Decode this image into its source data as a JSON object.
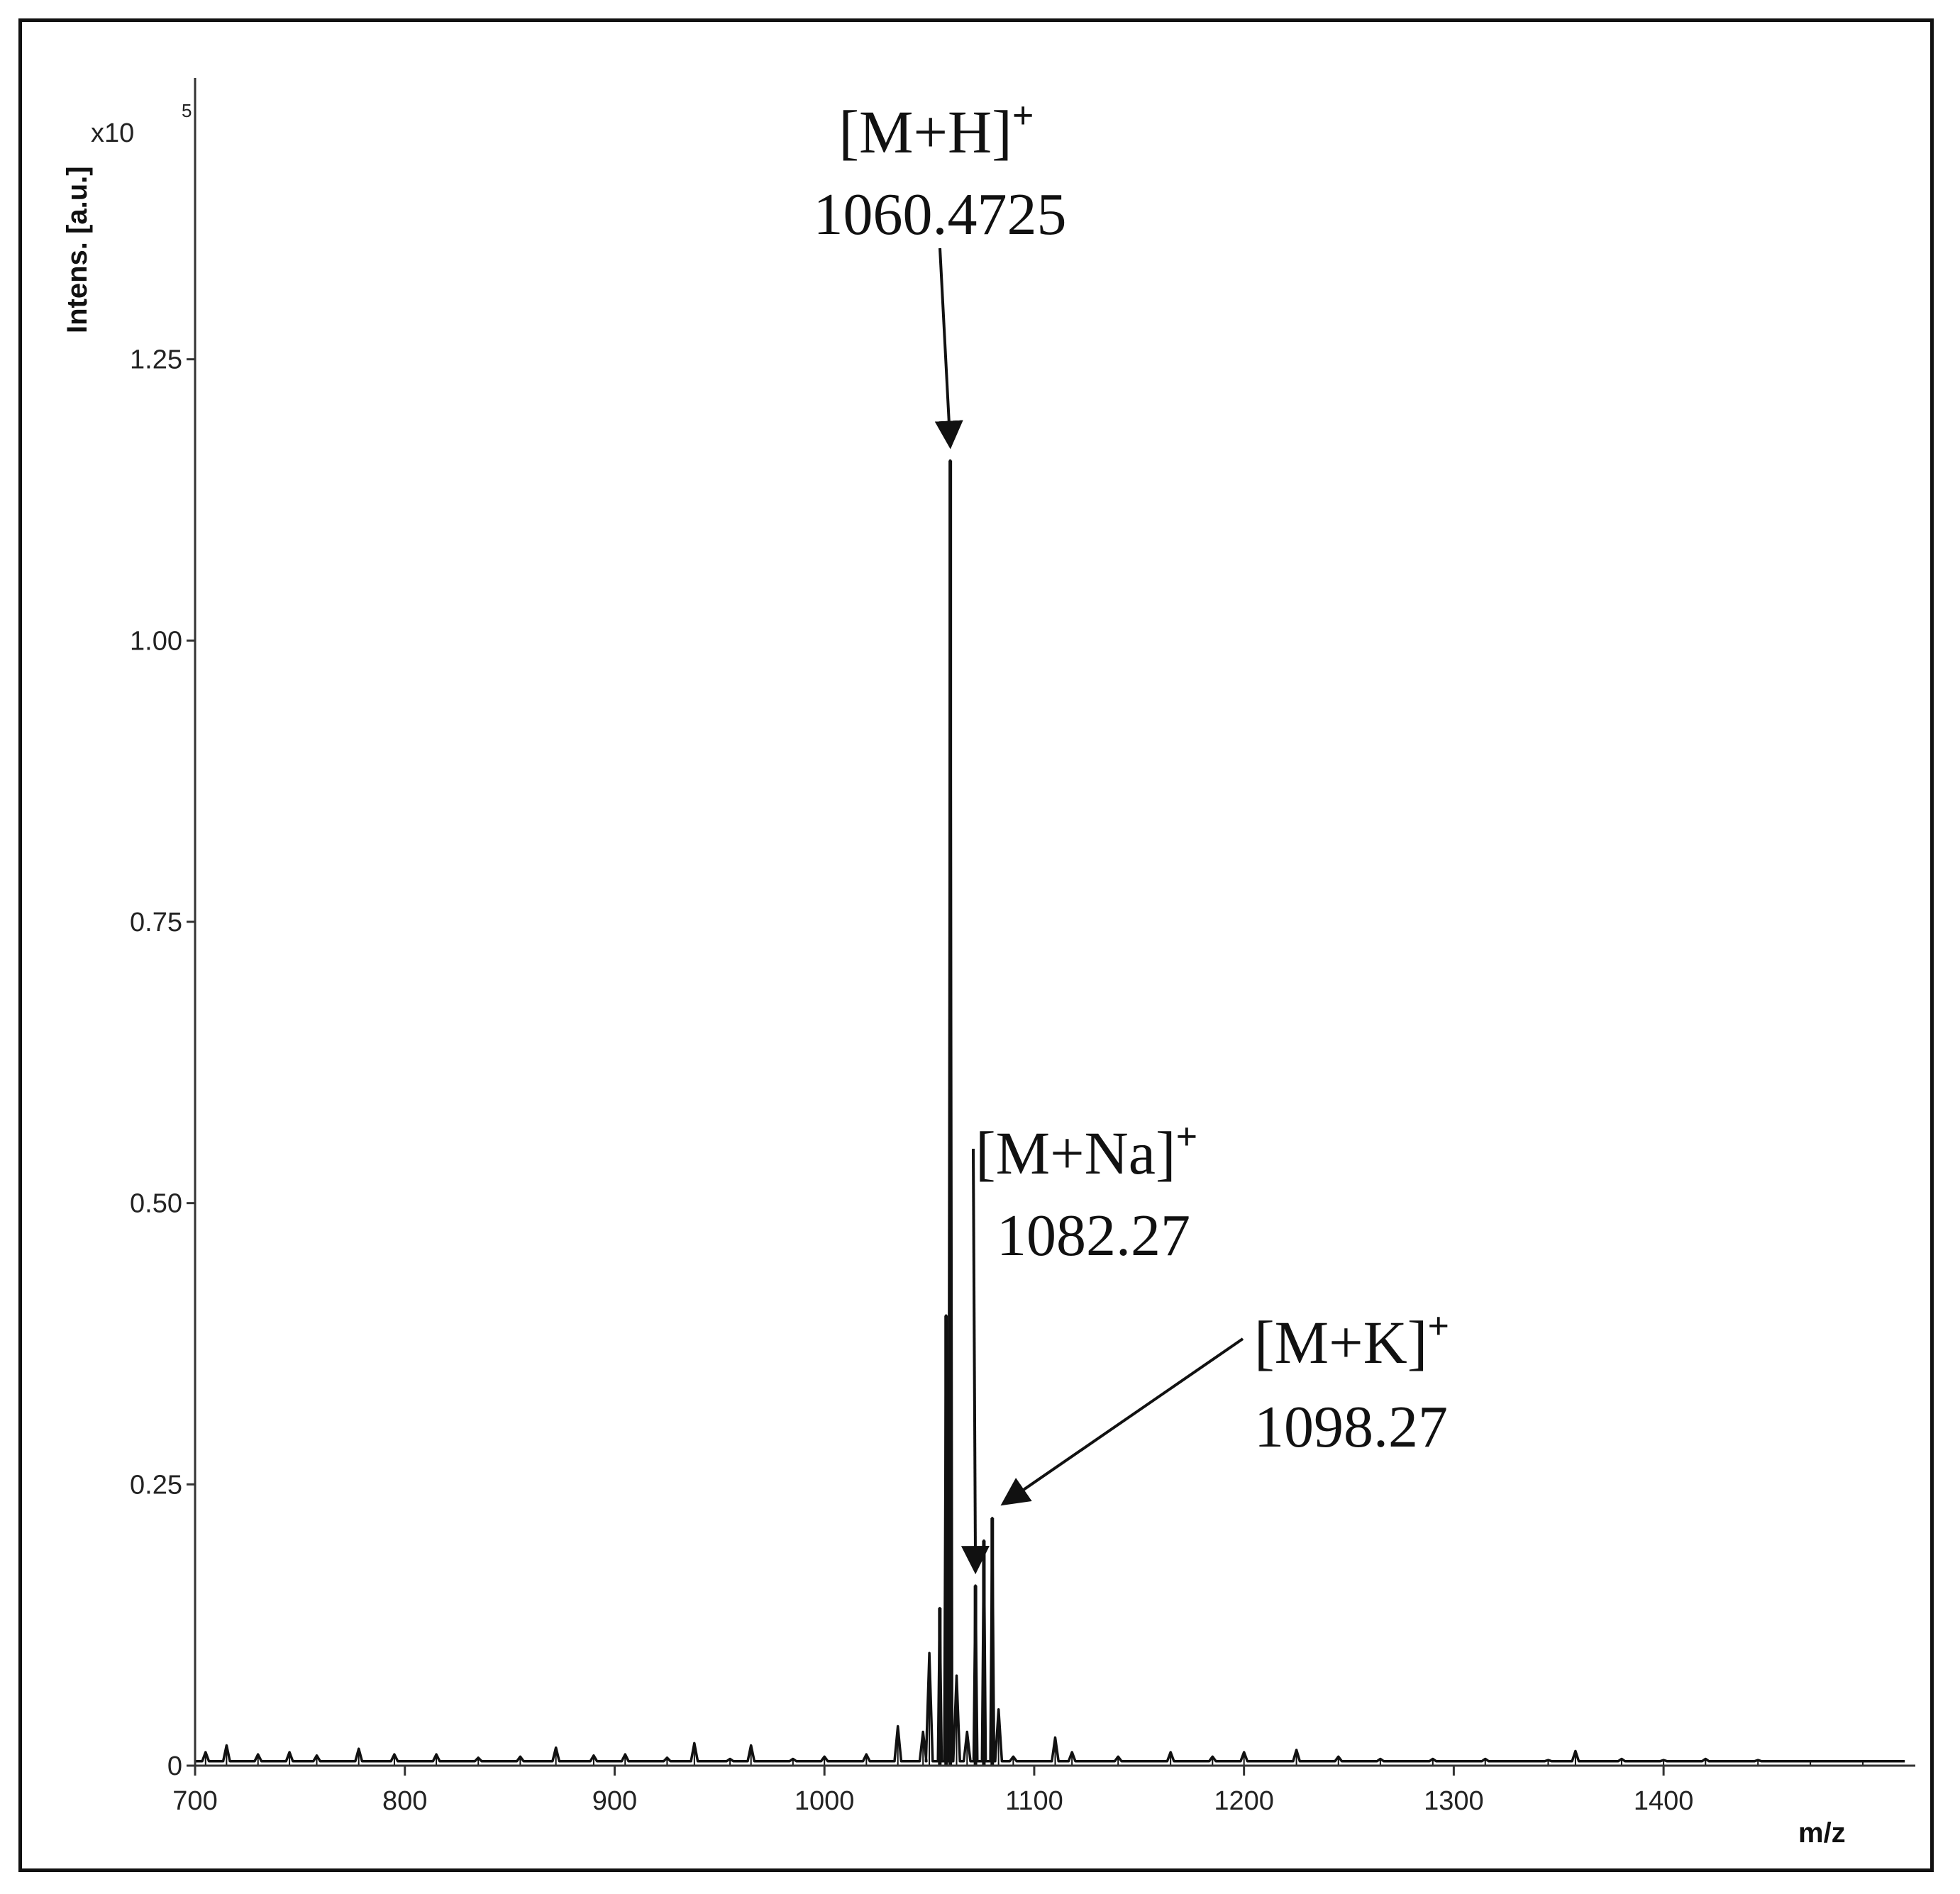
{
  "chart_data": {
    "type": "line",
    "title": "",
    "xlabel": "m/z",
    "ylabel": "Intens. [a.u.]",
    "y_multiplier": "x10",
    "y_exponent": "5",
    "xlim": [
      700,
      1520
    ],
    "ylim": [
      0,
      1.5
    ],
    "x_ticks": [
      700,
      800,
      900,
      1000,
      1100,
      1200,
      1300,
      1400
    ],
    "x_tick_labels": [
      "700",
      "800",
      "900",
      "1000",
      "1100",
      "1200",
      "1300",
      "1400"
    ],
    "y_ticks": [
      0,
      0.25,
      0.5,
      0.75,
      1.0,
      1.25
    ],
    "y_tick_labels": [
      "0",
      "0.25",
      "0.50",
      "0.75",
      "1.00",
      "1.25"
    ],
    "grid": false,
    "peaks": [
      {
        "x": 705,
        "y": 0.012
      },
      {
        "x": 715,
        "y": 0.018
      },
      {
        "x": 730,
        "y": 0.01
      },
      {
        "x": 745,
        "y": 0.012
      },
      {
        "x": 758,
        "y": 0.009
      },
      {
        "x": 778,
        "y": 0.015
      },
      {
        "x": 795,
        "y": 0.01
      },
      {
        "x": 815,
        "y": 0.01
      },
      {
        "x": 835,
        "y": 0.007
      },
      {
        "x": 855,
        "y": 0.008
      },
      {
        "x": 872,
        "y": 0.016
      },
      {
        "x": 890,
        "y": 0.009
      },
      {
        "x": 905,
        "y": 0.01
      },
      {
        "x": 925,
        "y": 0.007
      },
      {
        "x": 938,
        "y": 0.02
      },
      {
        "x": 955,
        "y": 0.006
      },
      {
        "x": 965,
        "y": 0.018
      },
      {
        "x": 985,
        "y": 0.006
      },
      {
        "x": 1000,
        "y": 0.008
      },
      {
        "x": 1020,
        "y": 0.01
      },
      {
        "x": 1035,
        "y": 0.035
      },
      {
        "x": 1047,
        "y": 0.03
      },
      {
        "x": 1050,
        "y": 0.1
      },
      {
        "x": 1055,
        "y": 0.14
      },
      {
        "x": 1058,
        "y": 0.4
      },
      {
        "x": 1060,
        "y": 1.16
      },
      {
        "x": 1063,
        "y": 0.08
      },
      {
        "x": 1068,
        "y": 0.03
      },
      {
        "x": 1072,
        "y": 0.16
      },
      {
        "x": 1076,
        "y": 0.2
      },
      {
        "x": 1080,
        "y": 0.22
      },
      {
        "x": 1083,
        "y": 0.05
      },
      {
        "x": 1090,
        "y": 0.008
      },
      {
        "x": 1110,
        "y": 0.025
      },
      {
        "x": 1118,
        "y": 0.012
      },
      {
        "x": 1140,
        "y": 0.008
      },
      {
        "x": 1165,
        "y": 0.012
      },
      {
        "x": 1185,
        "y": 0.008
      },
      {
        "x": 1200,
        "y": 0.012
      },
      {
        "x": 1225,
        "y": 0.014
      },
      {
        "x": 1245,
        "y": 0.008
      },
      {
        "x": 1265,
        "y": 0.006
      },
      {
        "x": 1290,
        "y": 0.006
      },
      {
        "x": 1315,
        "y": 0.006
      },
      {
        "x": 1345,
        "y": 0.005
      },
      {
        "x": 1358,
        "y": 0.013
      },
      {
        "x": 1380,
        "y": 0.006
      },
      {
        "x": 1400,
        "y": 0.005
      },
      {
        "x": 1420,
        "y": 0.006
      },
      {
        "x": 1445,
        "y": 0.005
      },
      {
        "x": 1470,
        "y": 0.004
      },
      {
        "x": 1495,
        "y": 0.004
      }
    ],
    "annotations": [
      {
        "ion": "[M+H]",
        "charge": "+",
        "value": "1060.4725",
        "x": 1060,
        "y": 1.16
      },
      {
        "ion": "[M+Na]",
        "charge": "+",
        "value": "1082.27",
        "x": 1072,
        "y": 0.16
      },
      {
        "ion": "[M+K]",
        "charge": "+",
        "value": "1098.27",
        "x": 1080,
        "y": 0.22
      }
    ]
  }
}
